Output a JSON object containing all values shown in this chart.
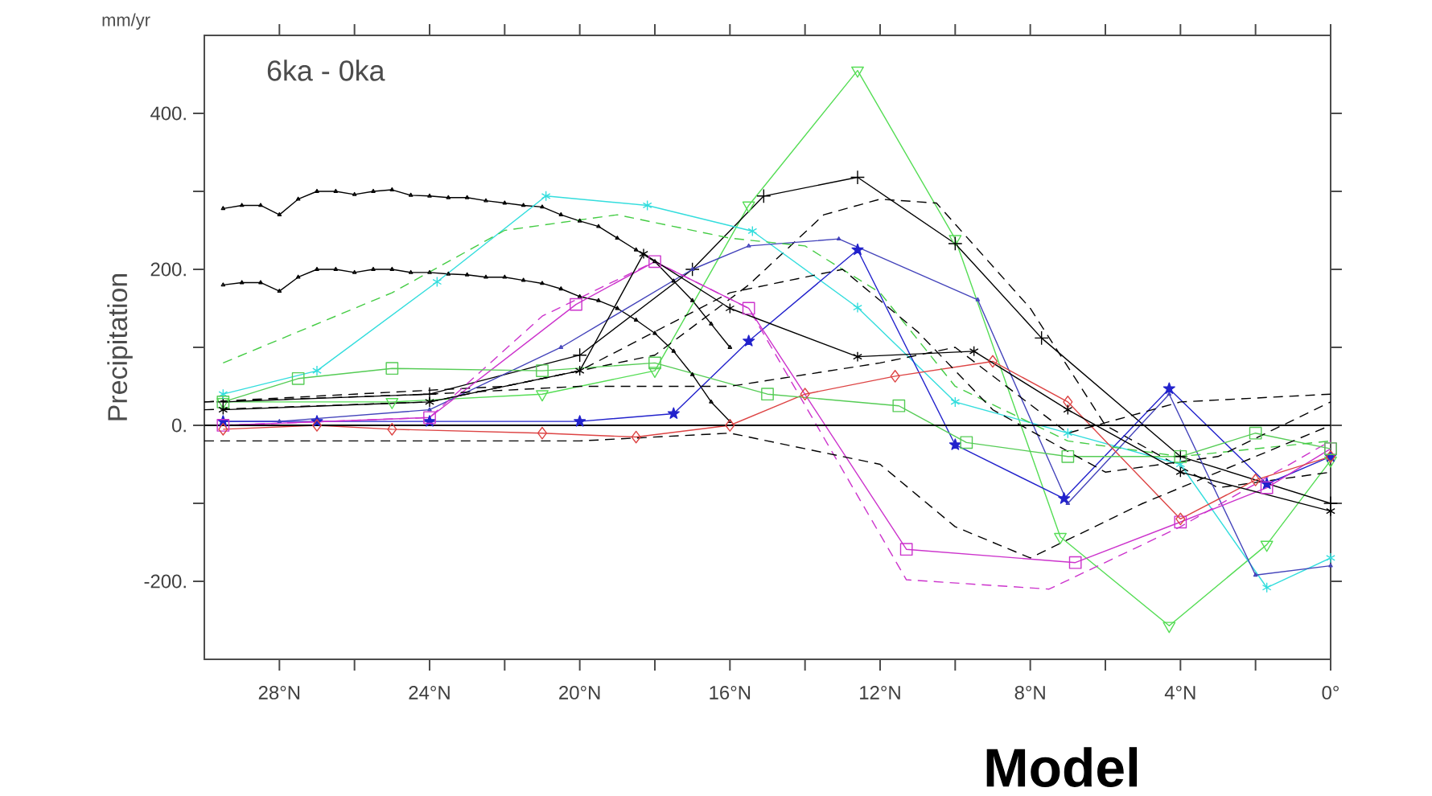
{
  "chart_data": {
    "type": "line",
    "title": "6ka - 0ka",
    "ylabel": "Precipitation",
    "annotations": [
      "mm/yr",
      "Model"
    ],
    "xlim": [
      30,
      0
    ],
    "ylim": [
      -300,
      500
    ],
    "xticks": [
      {
        "value": 28,
        "label": "28°N"
      },
      {
        "value": 26,
        "label": null
      },
      {
        "value": 24,
        "label": "24°N"
      },
      {
        "value": 22,
        "label": null
      },
      {
        "value": 20,
        "label": "20°N"
      },
      {
        "value": 18,
        "label": null
      },
      {
        "value": 16,
        "label": "16°N"
      },
      {
        "value": 14,
        "label": null
      },
      {
        "value": 12,
        "label": "12°N"
      },
      {
        "value": 10,
        "label": null
      },
      {
        "value": 8,
        "label": "8°N"
      },
      {
        "value": 6,
        "label": null
      },
      {
        "value": 4,
        "label": "4°N"
      },
      {
        "value": 2,
        "label": null
      },
      {
        "value": 0,
        "label": "0°"
      }
    ],
    "yticks": [
      {
        "value": -200,
        "label": "-200."
      },
      {
        "value": -100,
        "label": null
      },
      {
        "value": 0,
        "label": "0."
      },
      {
        "value": 100,
        "label": null
      },
      {
        "value": 200,
        "label": "200."
      },
      {
        "value": 300,
        "label": null
      },
      {
        "value": 400,
        "label": "400."
      }
    ],
    "ref_lines": [
      {
        "axis": "y",
        "value": 0,
        "color": "#000000"
      }
    ],
    "series": [
      {
        "color": "#000000",
        "marker": "triangle",
        "line_style": "solid",
        "x": [
          29.5,
          29,
          28.5,
          28,
          27.5,
          27,
          26.5,
          26,
          25.5,
          25,
          24.5,
          24,
          23.5,
          23,
          22.5,
          22,
          21.5,
          21,
          20.5,
          20,
          19.5,
          19,
          18.5,
          18,
          17.5,
          17,
          16.5,
          16
        ],
        "values": [
          278,
          282,
          282,
          270,
          290,
          300,
          300,
          296,
          300,
          302,
          295,
          294,
          292,
          292,
          288,
          285,
          282,
          280,
          270,
          262,
          255,
          240,
          225,
          210,
          185,
          160,
          130,
          100
        ]
      },
      {
        "color": "#000000",
        "marker": "triangle",
        "line_style": "solid",
        "x": [
          29.5,
          29,
          28.5,
          28,
          27.5,
          27,
          26.5,
          26,
          25.5,
          25,
          24.5,
          24,
          23.5,
          23,
          22.5,
          22,
          21.5,
          21,
          20.5,
          20,
          19.5,
          19,
          18.5,
          18,
          17.5,
          17,
          16.5,
          16
        ],
        "values": [
          180,
          183,
          183,
          172,
          190,
          200,
          200,
          196,
          200,
          200,
          196,
          196,
          194,
          193,
          190,
          190,
          186,
          182,
          175,
          165,
          160,
          150,
          135,
          118,
          95,
          65,
          30,
          5
        ]
      },
      {
        "color": "#55dd55",
        "marker": "triangle-down",
        "line_style": "solid",
        "x": [
          29.5,
          25,
          21,
          18,
          15.5,
          12.6,
          10,
          7.2,
          4.3,
          1.7,
          0
        ],
        "values": [
          30,
          30,
          40,
          70,
          282,
          455,
          239,
          -143,
          -257,
          -153,
          -45
        ]
      },
      {
        "color": "#000000",
        "marker": "plus",
        "line_style": "solid",
        "x": [
          29.5,
          24,
          20,
          17,
          15.1,
          12.6,
          10,
          7.7,
          4,
          0
        ],
        "values": [
          30,
          40,
          90,
          200,
          294,
          318,
          233,
          112,
          -40,
          -100
        ]
      },
      {
        "color": "#000000",
        "marker": "none",
        "line_style": "dashed",
        "x": [
          30,
          26,
          22,
          18,
          15.5,
          13.5,
          12,
          10.5,
          8,
          6,
          3,
          0
        ],
        "values": [
          30,
          40,
          50,
          90,
          180,
          270,
          290,
          285,
          150,
          0,
          -80,
          -60
        ]
      },
      {
        "color": "#33dddd",
        "marker": "cross",
        "line_style": "solid",
        "x": [
          29.5,
          27,
          23.8,
          20.9,
          18.2,
          15.4,
          12.6,
          10,
          7,
          4,
          1.7,
          0
        ],
        "values": [
          40,
          70,
          184,
          294,
          282,
          249,
          151,
          30,
          -10,
          -50,
          -208,
          -170
        ]
      },
      {
        "color": "#4444bb",
        "marker": "triangle",
        "line_style": "solid",
        "x": [
          29.5,
          28,
          24,
          20.5,
          17,
          15.5,
          13.1,
          9.4,
          7,
          4.3,
          2,
          0
        ],
        "values": [
          5,
          5,
          20,
          100,
          200,
          230,
          239,
          161,
          -100,
          40,
          -192,
          -180
        ]
      },
      {
        "color": "#2222cc",
        "marker": "star",
        "line_style": "solid",
        "x": [
          29.5,
          27,
          24,
          20,
          17.5,
          15.5,
          12.6,
          10,
          7.1,
          4.3,
          1.7,
          0
        ],
        "values": [
          5,
          5,
          5,
          5,
          15,
          108,
          225,
          -25,
          -94,
          47,
          -75,
          -40
        ]
      },
      {
        "color": "#cc33cc",
        "marker": "square",
        "line_style": "solid",
        "x": [
          29.5,
          24,
          20.1,
          18,
          15.5,
          11.3,
          6.8,
          4,
          1.7,
          0
        ],
        "values": [
          0,
          10,
          155,
          210,
          150,
          -159,
          -176,
          -124,
          -80,
          -30
        ]
      },
      {
        "color": "#cc33cc",
        "marker": "none",
        "line_style": "dashed",
        "x": [
          29.5,
          24,
          21,
          18,
          15.5,
          11.3,
          7.5,
          4,
          0
        ],
        "values": [
          0,
          10,
          140,
          210,
          150,
          -198,
          -210,
          -130,
          -20
        ]
      },
      {
        "color": "#dd4444",
        "marker": "diamond",
        "line_style": "solid",
        "x": [
          29.5,
          27,
          25,
          21,
          18.5,
          16,
          14,
          11.6,
          9,
          7,
          4,
          2,
          0
        ],
        "values": [
          -5,
          0,
          -5,
          -10,
          -15,
          0,
          40,
          63,
          82,
          30,
          -120,
          -70,
          -40
        ]
      },
      {
        "color": "#55cc55",
        "marker": "square",
        "line_style": "solid",
        "x": [
          29.5,
          27.5,
          25,
          21,
          18,
          15,
          11.5,
          9.7,
          7,
          4,
          2,
          0
        ],
        "values": [
          30,
          60,
          73,
          70,
          80,
          40,
          25,
          -22,
          -40,
          -40,
          -10,
          -30
        ]
      },
      {
        "color": "#44cc44",
        "marker": "none",
        "line_style": "dashed",
        "x": [
          29.5,
          25,
          22,
          19,
          16,
          14,
          12,
          10,
          7,
          4,
          0
        ],
        "values": [
          80,
          170,
          250,
          270,
          240,
          230,
          170,
          50,
          -20,
          -40,
          -20
        ]
      },
      {
        "color": "#000000",
        "marker": "cross",
        "line_style": "solid",
        "x": [
          29.5,
          24,
          20,
          18.3,
          16,
          12.6,
          9.5,
          7,
          4,
          0
        ],
        "values": [
          20,
          30,
          70,
          220,
          150,
          88,
          95,
          20,
          -60,
          -110
        ]
      },
      {
        "color": "#000000",
        "marker": "none",
        "line_style": "dashed",
        "x": [
          30,
          24,
          20,
          16,
          12,
          10,
          7,
          4,
          0
        ],
        "values": [
          30,
          40,
          50,
          50,
          80,
          100,
          -10,
          30,
          40
        ]
      },
      {
        "color": "#000000",
        "marker": "none",
        "line_style": "dashed",
        "x": [
          30,
          24,
          20,
          16,
          12,
          10,
          8,
          5,
          2,
          0
        ],
        "values": [
          -20,
          -20,
          -20,
          -10,
          -50,
          -130,
          -170,
          -100,
          -40,
          0
        ]
      },
      {
        "color": "#000000",
        "marker": "none",
        "line_style": "dashed",
        "x": [
          30,
          24,
          20,
          16,
          13,
          11,
          9,
          6,
          3,
          0
        ],
        "values": [
          20,
          30,
          70,
          170,
          200,
          120,
          20,
          -60,
          -40,
          30
        ]
      }
    ]
  }
}
